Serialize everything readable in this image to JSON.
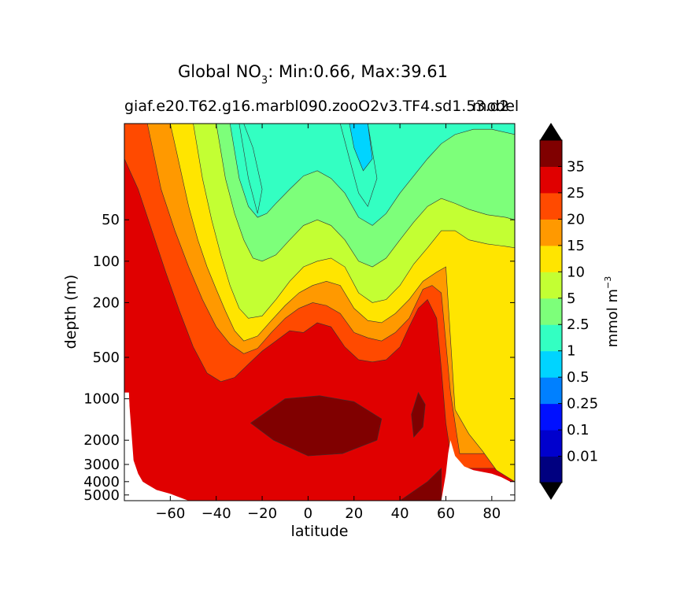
{
  "title": {
    "prefix": "Global NO",
    "sub": "3",
    "suffix": ": Min:0.66, Max:39.61"
  },
  "subtitle_left": "giaf.e20.T62.g16.marbl090.zooO2v3.TF4.sd1.53.d2",
  "subtitle_right": "model",
  "colors": {
    "land": "#ffffff",
    "frame": "#000000",
    "levels": [
      "#000080",
      "#0000cd",
      "#0010ff",
      "#0080ff",
      "#00d4ff",
      "#33ffc2",
      "#7dff7a",
      "#c3ff33",
      "#ffe500",
      "#ff9900",
      "#ff4a00",
      "#e00000",
      "#800000"
    ]
  },
  "chart_data": {
    "type": "contourf",
    "xlabel": "latitude",
    "ylabel": "depth (m)",
    "xlim": [
      -80,
      90
    ],
    "xticks": [
      -60,
      -40,
      -20,
      0,
      20,
      40,
      60,
      80
    ],
    "yscale": "log (inverted)",
    "ylim": [
      5500,
      10
    ],
    "yticks": [
      50,
      100,
      200,
      500,
      1000,
      2000,
      3000,
      4000,
      5000
    ],
    "colorbar": {
      "label": "mmol m",
      "label_exp": "−3",
      "extend": "both",
      "levels": [
        0,
        0.01,
        0.1,
        0.25,
        0.5,
        1,
        2.5,
        5,
        10,
        15,
        20,
        25,
        35
      ],
      "tick_labels": [
        "0.01",
        "0.1",
        "0.25",
        "0.5",
        "1",
        "2.5",
        "5",
        "10",
        "15",
        "20",
        "25",
        "35"
      ]
    },
    "field": {
      "description_of_bands": "NO3 concentration bands by depth and latitude",
      "isolines": [
        {
          "value": 35,
          "band": "35+",
          "regions": [
            {
              "lat": [
                -25,
                -10,
                5,
                20,
                32,
                30,
                15,
                0,
                -15,
                -25
              ],
              "depth": [
                1500,
                1000,
                950,
                1050,
                1400,
                2000,
                2500,
                2600,
                2000,
                1500
              ]
            },
            {
              "lat": [
                45,
                48,
                51,
                50,
                46,
                45
              ],
              "depth": [
                1300,
                900,
                1100,
                1600,
                1900,
                1300
              ]
            },
            {
              "lat": [
                40,
                52,
                58,
                58,
                35,
                40
              ],
              "depth": [
                5500,
                4000,
                3200,
                5500,
                5500,
                5500
              ]
            }
          ]
        },
        {
          "value": 25,
          "boundary_lat": [
            -80,
            -74,
            -68,
            -62,
            -56,
            -50,
            -44,
            -38,
            -32,
            -26,
            -20,
            -14,
            -8,
            -2,
            4,
            10,
            16,
            22,
            28,
            34,
            40,
            44,
            48,
            52,
            56,
            58,
            60,
            62,
            64
          ],
          "boundary_depth": [
            18,
            30,
            60,
            120,
            230,
            420,
            650,
            750,
            700,
            560,
            450,
            380,
            320,
            330,
            280,
            300,
            420,
            520,
            540,
            520,
            420,
            300,
            220,
            190,
            260,
            600,
            1500,
            2500,
            3200
          ]
        },
        {
          "value": 20,
          "boundary_lat": [
            -70,
            -64,
            -58,
            -52,
            -46,
            -40,
            -34,
            -28,
            -22,
            -16,
            -10,
            -4,
            2,
            8,
            14,
            20,
            26,
            32,
            38,
            44,
            50,
            54,
            58,
            62,
            66
          ],
          "boundary_depth": [
            10,
            30,
            60,
            110,
            190,
            300,
            400,
            470,
            430,
            330,
            260,
            220,
            200,
            210,
            240,
            330,
            360,
            380,
            330,
            260,
            160,
            150,
            170,
            900,
            2500
          ]
        },
        {
          "value": 15,
          "boundary_lat": [
            -60,
            -56,
            -52,
            -48,
            -44,
            -40,
            -36,
            -32,
            -28,
            -22,
            -16,
            -10,
            -4,
            2,
            8,
            14,
            20,
            26,
            32,
            38,
            44,
            50,
            56,
            60,
            64,
            70,
            76,
            82,
            90
          ],
          "boundary_depth": [
            10,
            20,
            40,
            70,
            110,
            160,
            230,
            320,
            380,
            350,
            270,
            210,
            170,
            150,
            140,
            150,
            220,
            270,
            280,
            240,
            190,
            140,
            120,
            110,
            1200,
            1800,
            2400,
            3300,
            4000
          ]
        },
        {
          "value": 10,
          "boundary_lat": [
            -50,
            -46,
            -42,
            -38,
            -34,
            -30,
            -26,
            -20,
            -14,
            -8,
            -2,
            4,
            10,
            16,
            22,
            28,
            34,
            40,
            46,
            52,
            58,
            64,
            70,
            78,
            86,
            90
          ],
          "boundary_depth": [
            10,
            25,
            50,
            90,
            150,
            220,
            260,
            250,
            190,
            140,
            110,
            100,
            95,
            110,
            170,
            200,
            190,
            150,
            105,
            80,
            60,
            60,
            70,
            75,
            78,
            80
          ]
        },
        {
          "value": 5,
          "boundary_lat": [
            -40,
            -36,
            -32,
            -28,
            -24,
            -20,
            -14,
            -8,
            -2,
            4,
            10,
            16,
            22,
            28,
            34,
            40,
            46,
            52,
            58,
            64,
            70,
            78,
            86,
            90
          ],
          "boundary_depth": [
            10,
            25,
            45,
            70,
            95,
            100,
            90,
            70,
            55,
            50,
            55,
            70,
            100,
            110,
            95,
            70,
            52,
            40,
            35,
            38,
            42,
            46,
            48,
            50
          ]
        },
        {
          "value": 2.5,
          "boundary_lat": [
            -34,
            -30,
            -26,
            -22,
            -18,
            -14,
            -8,
            -2,
            4,
            10,
            16,
            22,
            28,
            34,
            40,
            46,
            52,
            58,
            64,
            72,
            80,
            90
          ],
          "boundary_depth": [
            10,
            25,
            40,
            48,
            45,
            38,
            30,
            24,
            22,
            25,
            32,
            48,
            55,
            45,
            32,
            24,
            18,
            14,
            12,
            11,
            11,
            12
          ]
        },
        {
          "value": 1,
          "regions": [
            {
              "lat": [
                -30,
                -26,
                -22,
                -20,
                -24,
                -28,
                -30
              ],
              "depth": [
                10,
                25,
                45,
                30,
                15,
                10,
                10
              ]
            },
            {
              "lat": [
                14,
                18,
                22,
                26,
                30,
                26,
                20,
                14
              ],
              "depth": [
                10,
                18,
                32,
                40,
                25,
                10,
                10,
                10
              ]
            }
          ]
        },
        {
          "value": 0.5,
          "regions": [
            {
              "lat": [
                18,
                20,
                24,
                28,
                26,
                18
              ],
              "depth": [
                10,
                15,
                22,
                18,
                10,
                10
              ]
            }
          ]
        }
      ],
      "land_mask_lat": [
        -80,
        -78,
        -76,
        -74,
        -72,
        -70,
        -66,
        -60,
        -56,
        -52,
        -40,
        0,
        30,
        34,
        58,
        60,
        61,
        62,
        64,
        68,
        72,
        76,
        80,
        84,
        88,
        90
      ],
      "land_mask_depth": [
        900,
        1000,
        2800,
        3500,
        4000,
        4200,
        4600,
        4900,
        5200,
        5500,
        5500,
        5500,
        5500,
        5500,
        5500,
        3500,
        2500,
        2000,
        2600,
        3100,
        3300,
        3400,
        3500,
        3700,
        4000,
        4000
      ]
    }
  }
}
